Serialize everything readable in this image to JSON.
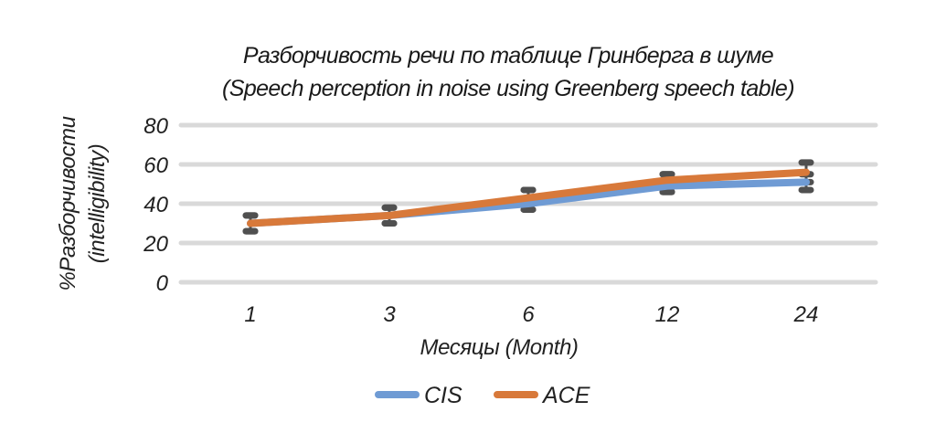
{
  "chart_data": {
    "type": "line",
    "title": "Разборчивость речи по таблице Гринберга в шуме",
    "subtitle": "(Speech perception in noise using Greenberg speech table)",
    "xlabel": "Месяцы (Month)",
    "ylabel": "%Разборчивости",
    "ylabel_sub": "(intelligibility)",
    "categories": [
      "1",
      "3",
      "6",
      "12",
      "24"
    ],
    "yticks": [
      "0",
      "20",
      "40",
      "60",
      "80"
    ],
    "ylim": [
      0,
      80
    ],
    "grid": true,
    "legend": "bottom",
    "series": [
      {
        "name": "CIS",
        "color": "#6f9bd4",
        "values": [
          30,
          34,
          40,
          49,
          51
        ],
        "err_low": [
          26,
          30,
          37,
          46,
          47
        ],
        "err_high": [
          34,
          38,
          47,
          55,
          55
        ]
      },
      {
        "name": "ACE",
        "color": "#d8793a",
        "values": [
          30,
          34,
          43,
          52,
          56
        ],
        "err_low": [
          26,
          30,
          37,
          46,
          51
        ],
        "err_high": [
          34,
          38,
          47,
          55,
          61
        ]
      }
    ],
    "error_bar_color": "#505050"
  }
}
